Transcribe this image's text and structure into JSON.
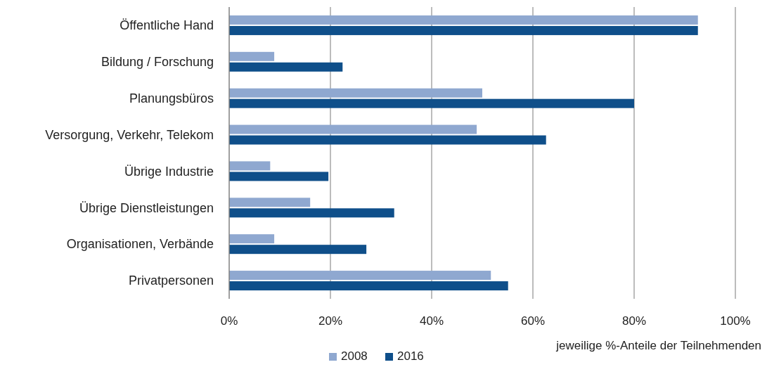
{
  "chart_data": {
    "type": "bar",
    "orientation": "horizontal",
    "xlabel": "jeweilige %-Anteile der Teilnehmenden",
    "categories": [
      "Öffentliche Hand",
      "Bildung / Forschung",
      "Planungsbüros",
      "Versorgung, Verkehr, Telekom",
      "Übrige Industrie",
      "Übrige Dienstleistungen",
      "Organisationen, Verbände",
      "Privatpersonen"
    ],
    "series": [
      {
        "name": "2008",
        "color": "#8fa8d0",
        "values": [
          92.6,
          8.9,
          50,
          48.9,
          8.1,
          16,
          8.9,
          51.7
        ]
      },
      {
        "name": "2016",
        "color": "#0f4f8a",
        "values": [
          92.6,
          22.4,
          80,
          62.6,
          19.6,
          32.6,
          27.1,
          55.1
        ]
      }
    ],
    "xlim": [
      0,
      100
    ],
    "xticks": [
      {
        "value": 0,
        "label": "0%"
      },
      {
        "value": 20,
        "label": "20%"
      },
      {
        "value": 40,
        "label": "40%"
      },
      {
        "value": 60,
        "label": "60%"
      },
      {
        "value": 80,
        "label": "80%"
      },
      {
        "value": 100,
        "label": "100%"
      }
    ],
    "grid": "x",
    "legend": "bottom"
  }
}
